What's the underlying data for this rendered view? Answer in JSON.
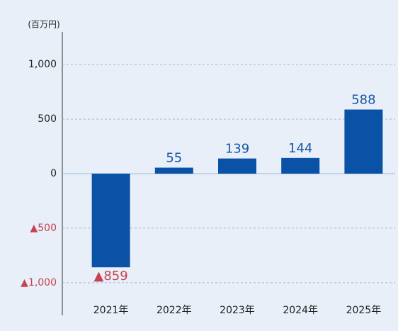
{
  "chart_data": {
    "type": "bar",
    "y_axis_label": "(百万円)",
    "categories": [
      "2021年",
      "2022年",
      "2023年",
      "2024年",
      "2025年"
    ],
    "values": [
      -859,
      55,
      139,
      144,
      588
    ],
    "value_labels": [
      "▲859",
      "55",
      "139",
      "144",
      "588"
    ],
    "color": "#0a52a5",
    "label_color": "#1756a8",
    "negative_color": "#c9404f",
    "ylim": [
      -1300,
      1300
    ],
    "yticks": [
      {
        "value": -1000,
        "label": "▲1,000"
      },
      {
        "value": -500,
        "label": "▲500"
      },
      0,
      500,
      {
        "value": 1000,
        "label": "1,000"
      }
    ],
    "grid": true
  }
}
